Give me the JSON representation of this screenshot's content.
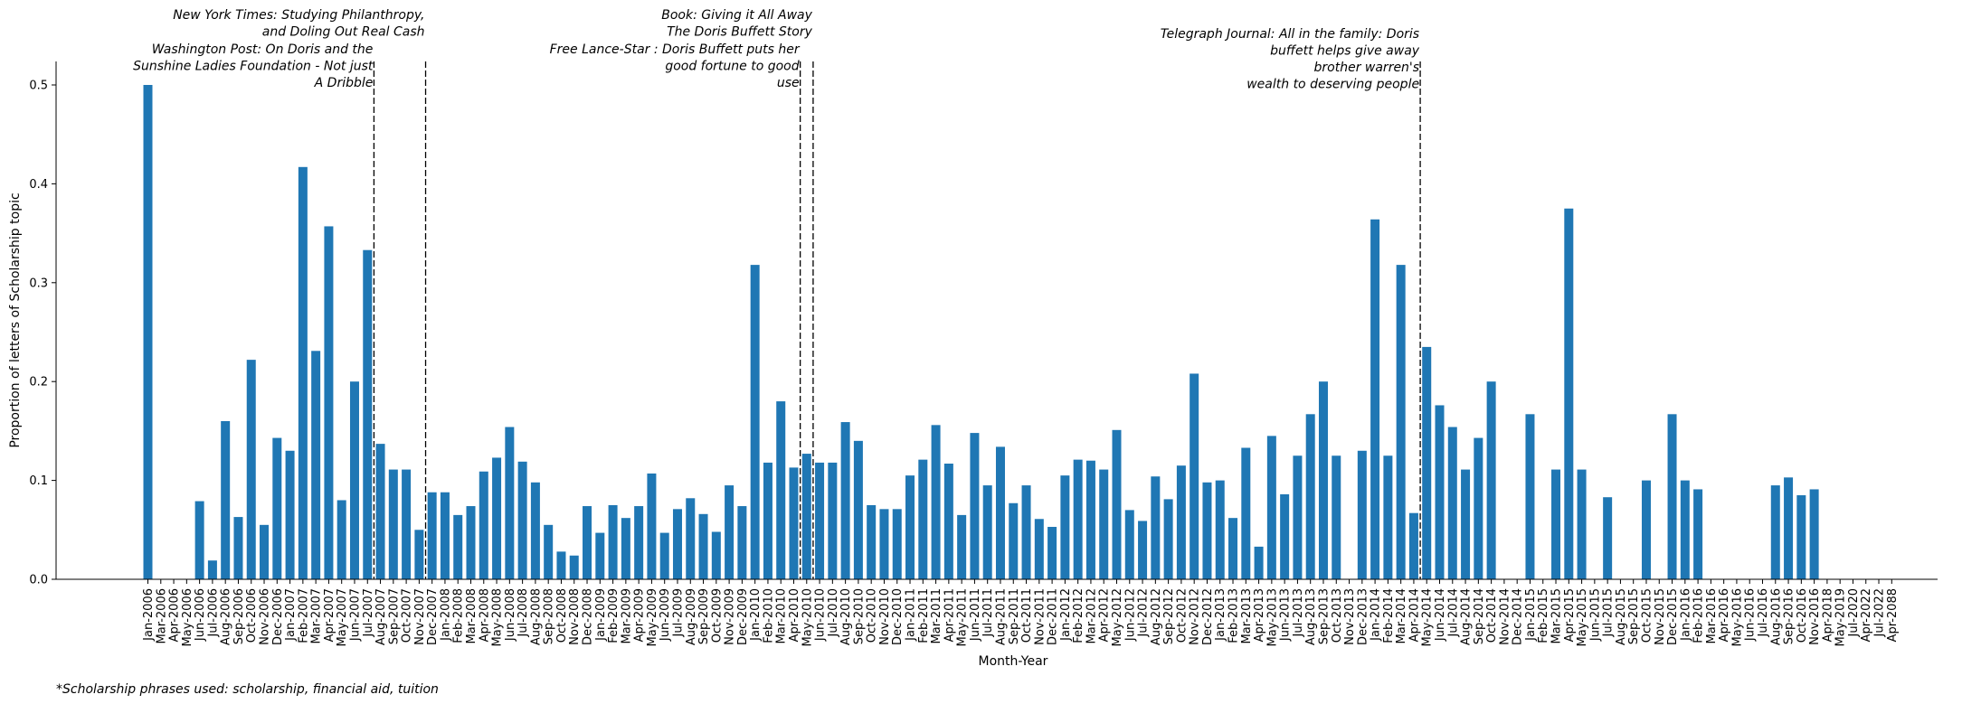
{
  "chart_data": {
    "type": "bar",
    "xlabel": "Month-Year",
    "ylabel": "Proportion of letters of Scholarship topic",
    "ylim": [
      0,
      0.525
    ],
    "yticks": [
      "0.0",
      "0.1",
      "0.2",
      "0.3",
      "0.4",
      "0.5"
    ],
    "bar_color": "#1f77b4",
    "categories": [
      "Jan-2006",
      "Mar-2006",
      "Apr-2006",
      "May-2006",
      "Jun-2006",
      "Jul-2006",
      "Aug-2006",
      "Sep-2006",
      "Oct-2006",
      "Nov-2006",
      "Dec-2006",
      "Jan-2007",
      "Feb-2007",
      "Mar-2007",
      "Apr-2007",
      "May-2007",
      "Jun-2007",
      "Jul-2007",
      "Aug-2007",
      "Sep-2007",
      "Oct-2007",
      "Nov-2007",
      "Dec-2007",
      "Jan-2008",
      "Feb-2008",
      "Mar-2008",
      "Apr-2008",
      "May-2008",
      "Jun-2008",
      "Jul-2008",
      "Aug-2008",
      "Sep-2008",
      "Oct-2008",
      "Nov-2008",
      "Dec-2008",
      "Jan-2009",
      "Feb-2009",
      "Mar-2009",
      "Apr-2009",
      "May-2009",
      "Jun-2009",
      "Jul-2009",
      "Aug-2009",
      "Sep-2009",
      "Oct-2009",
      "Nov-2009",
      "Dec-2009",
      "Jan-2010",
      "Feb-2010",
      "Mar-2010",
      "Apr-2010",
      "May-2010",
      "Jun-2010",
      "Jul-2010",
      "Aug-2010",
      "Sep-2010",
      "Oct-2010",
      "Nov-2010",
      "Dec-2010",
      "Jan-2011",
      "Feb-2011",
      "Mar-2011",
      "Apr-2011",
      "May-2011",
      "Jun-2011",
      "Jul-2011",
      "Aug-2011",
      "Sep-2011",
      "Oct-2011",
      "Nov-2011",
      "Dec-2011",
      "Jan-2012",
      "Feb-2012",
      "Mar-2012",
      "Apr-2012",
      "May-2012",
      "Jun-2012",
      "Jul-2012",
      "Aug-2012",
      "Sep-2012",
      "Oct-2012",
      "Nov-2012",
      "Dec-2012",
      "Jan-2013",
      "Feb-2013",
      "Mar-2013",
      "Apr-2013",
      "May-2013",
      "Jun-2013",
      "Jul-2013",
      "Aug-2013",
      "Sep-2013",
      "Oct-2013",
      "Nov-2013",
      "Dec-2013",
      "Jan-2014",
      "Feb-2014",
      "Mar-2014",
      "Apr-2014",
      "May-2014",
      "Jun-2014",
      "Jul-2014",
      "Aug-2014",
      "Sep-2014",
      "Oct-2014",
      "Nov-2014",
      "Dec-2014",
      "Jan-2015",
      "Feb-2015",
      "Mar-2015",
      "Apr-2015",
      "May-2015",
      "Jun-2015",
      "Jul-2015",
      "Aug-2015",
      "Sep-2015",
      "Oct-2015",
      "Nov-2015",
      "Dec-2015",
      "Jan-2016",
      "Feb-2016",
      "Mar-2016",
      "Apr-2016",
      "May-2016",
      "Jun-2016",
      "Jul-2016",
      "Aug-2016",
      "Sep-2016",
      "Oct-2016",
      "Nov-2016",
      "Apr-2018",
      "May-2019",
      "Jul-2020",
      "Apr-2022",
      "Jul-2022",
      "Apr-2088"
    ],
    "values": [
      0.5,
      0,
      0,
      0,
      0.079,
      0.019,
      0.16,
      0.063,
      0.222,
      0.055,
      0.143,
      0.13,
      0.417,
      0.231,
      0.357,
      0.08,
      0.2,
      0.333,
      0.137,
      0.111,
      0.111,
      0.05,
      0.088,
      0.088,
      0.065,
      0.074,
      0.109,
      0.123,
      0.154,
      0.119,
      0.098,
      0.055,
      0.028,
      0.024,
      0.074,
      0.047,
      0.075,
      0.062,
      0.074,
      0.107,
      0.047,
      0.071,
      0.082,
      0.066,
      0.048,
      0.095,
      0.074,
      0.318,
      0.118,
      0.18,
      0.113,
      0.127,
      0.118,
      0.118,
      0.159,
      0.14,
      0.075,
      0.071,
      0.071,
      0.105,
      0.121,
      0.156,
      0.117,
      0.065,
      0.148,
      0.095,
      0.134,
      0.077,
      0.095,
      0.061,
      0.053,
      0.105,
      0.121,
      0.12,
      0.111,
      0.151,
      0.07,
      0.059,
      0.104,
      0.081,
      0.115,
      0.208,
      0.098,
      0.1,
      0.062,
      0.133,
      0.033,
      0.145,
      0.086,
      0.125,
      0.167,
      0.2,
      0.125,
      0,
      0.13,
      0.364,
      0.125,
      0.318,
      0.067,
      0.235,
      0.176,
      0.154,
      0.111,
      0.143,
      0.2,
      0,
      0,
      0.167,
      0,
      0.111,
      0.375,
      0.111,
      0,
      0.083,
      0,
      0,
      0.1,
      0,
      0.167,
      0.1,
      0.091,
      0,
      0,
      0,
      0,
      0,
      0.095,
      0.103,
      0.085,
      0.091,
      0,
      0,
      0,
      0,
      0,
      0
    ],
    "annotations": [
      {
        "index": 17.5,
        "lines": [
          "Washington Post: On Doris and the",
          "Sunshine Ladies  Foundation - Not just",
          "A Dribble"
        ],
        "row": "low"
      },
      {
        "index": 21.5,
        "lines": [
          "New York Times: Studying Philanthropy,",
          "and Doling Out Real Cash"
        ],
        "row": "high"
      },
      {
        "index": 50.5,
        "lines": [
          "Free Lance-Star : Doris Buffett puts her",
          "good fortune to good",
          "use"
        ],
        "row": "low"
      },
      {
        "index": 51.5,
        "lines": [
          "Book: Giving it All Away",
          "The Doris Buffett Story"
        ],
        "row": "high"
      },
      {
        "index": 98.5,
        "lines": [
          "Telegraph Journal: All in the family: Doris",
          "buffett helps give away",
          "brother warren's",
          "wealth to deserving people"
        ],
        "row": "mid"
      }
    ]
  },
  "footnote": "*Scholarship phrases used: scholarship, financial aid, tuition"
}
